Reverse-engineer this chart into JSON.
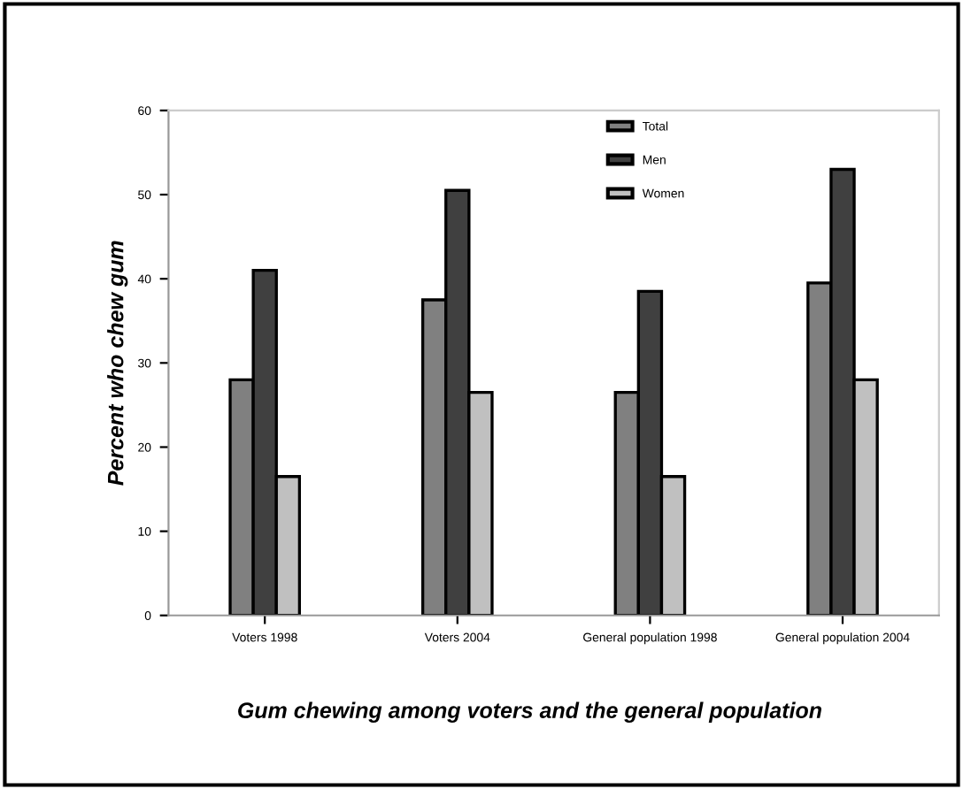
{
  "chart_data": {
    "type": "bar",
    "xlabel": "Gum chewing among voters and the general population",
    "ylabel": "Percent who chew gum",
    "categories": [
      "Voters 1998",
      "Voters 2004",
      "General population 1998",
      "General population 2004"
    ],
    "series": [
      {
        "name": "Total",
        "color": "#808080",
        "values": [
          28,
          37.5,
          26.5,
          39.5
        ]
      },
      {
        "name": "Men",
        "color": "#404040",
        "values": [
          41,
          50.5,
          38.5,
          53
        ]
      },
      {
        "name": "Women",
        "color": "#c0c0c0",
        "values": [
          16.5,
          26.5,
          16.5,
          28
        ]
      }
    ],
    "ylim": [
      0,
      60
    ],
    "yticks": [
      0,
      10,
      20,
      30,
      40,
      50,
      60
    ],
    "grid": false,
    "legend": "top"
  }
}
